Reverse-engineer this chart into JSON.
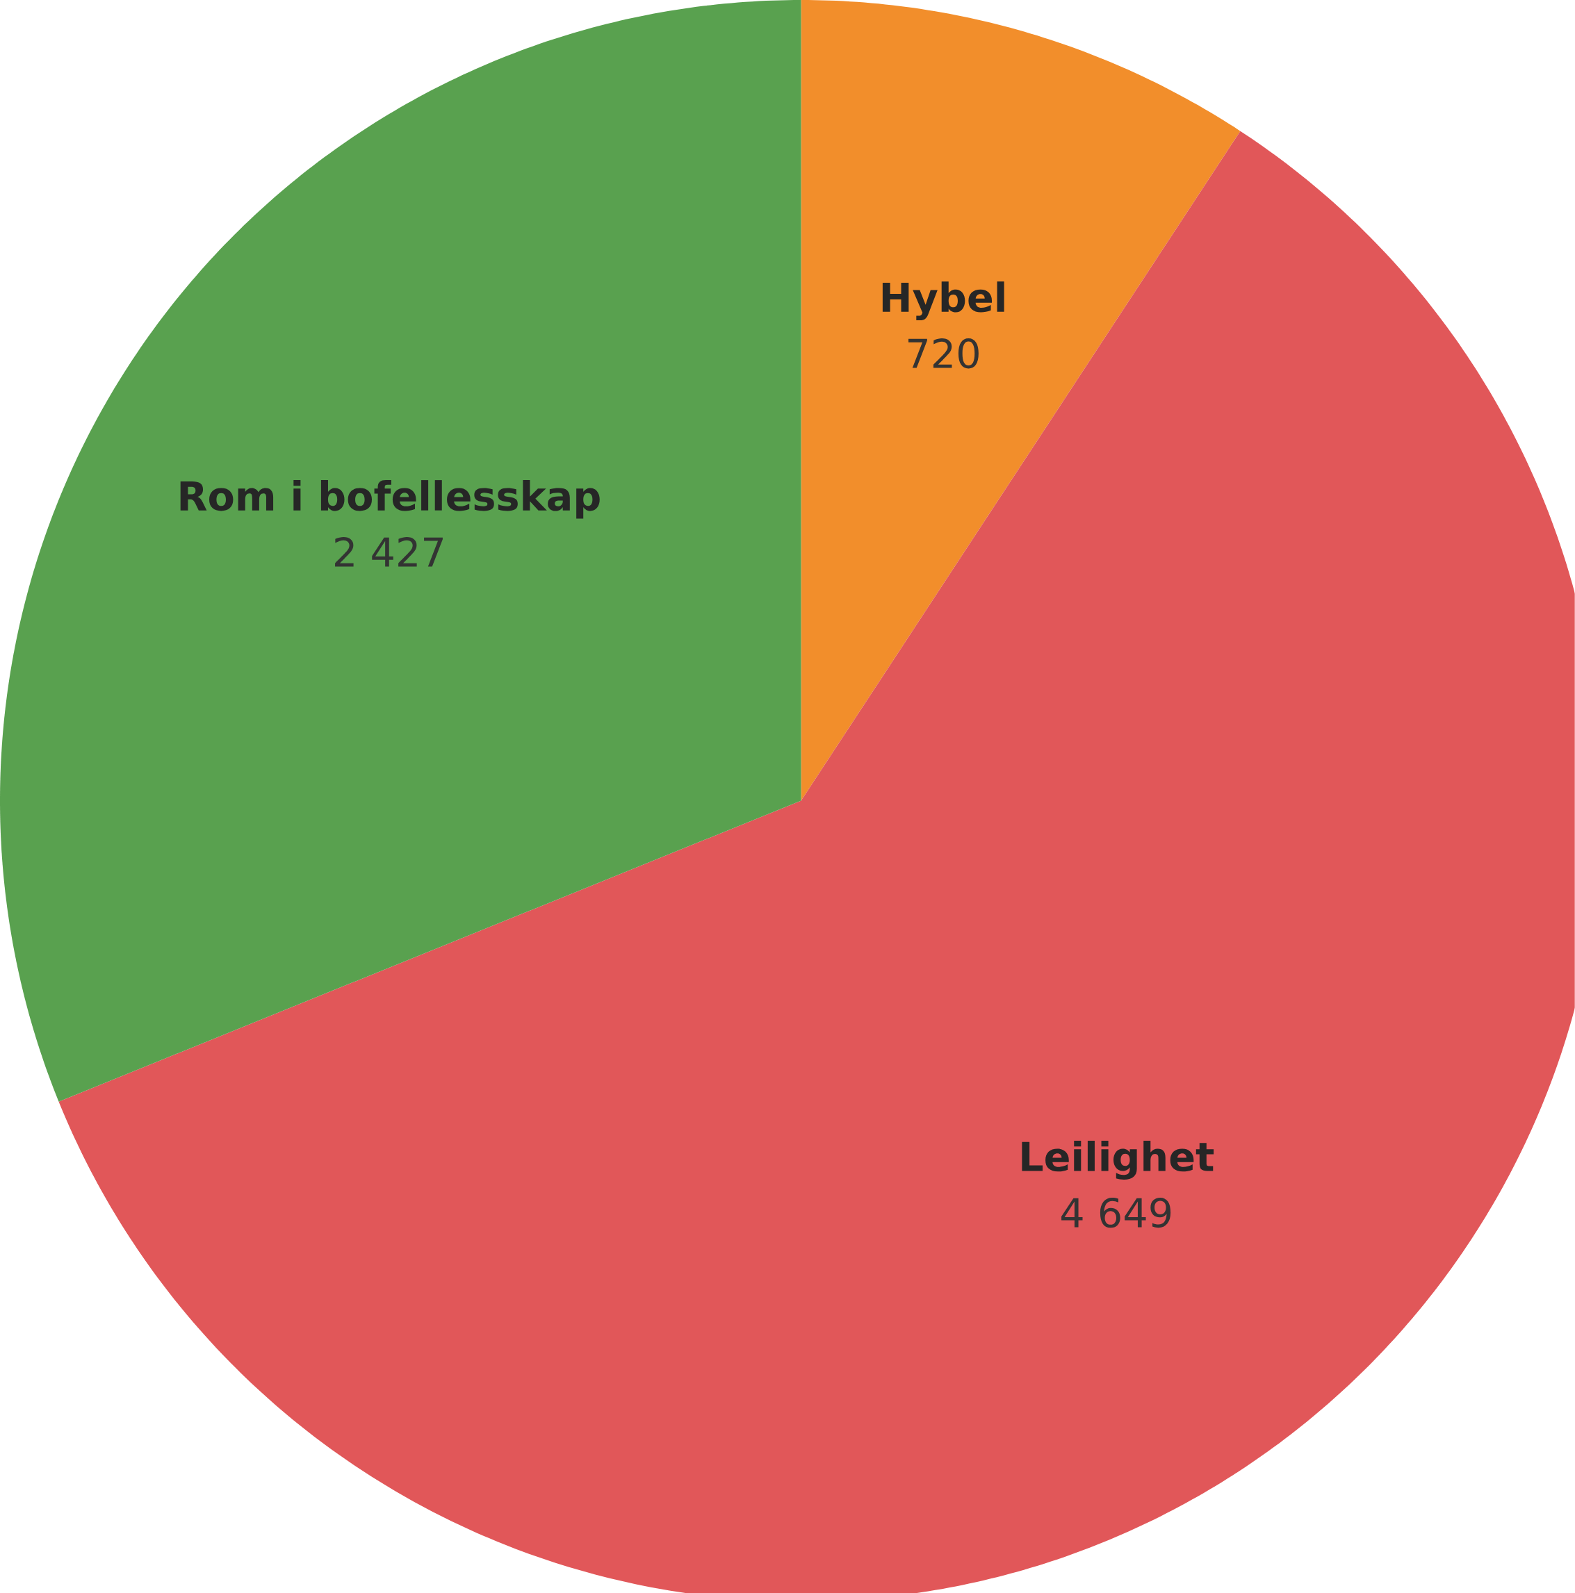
{
  "chart_data": {
    "type": "pie",
    "categories": [
      "Hybel",
      "Leilighet",
      "Rom i bofellesskap"
    ],
    "values": [
      720,
      4649,
      2427
    ],
    "colors": [
      "#f28e2b",
      "#e15759",
      "#59a14f"
    ],
    "value_labels": [
      "720",
      "4 649",
      "2 427"
    ]
  }
}
